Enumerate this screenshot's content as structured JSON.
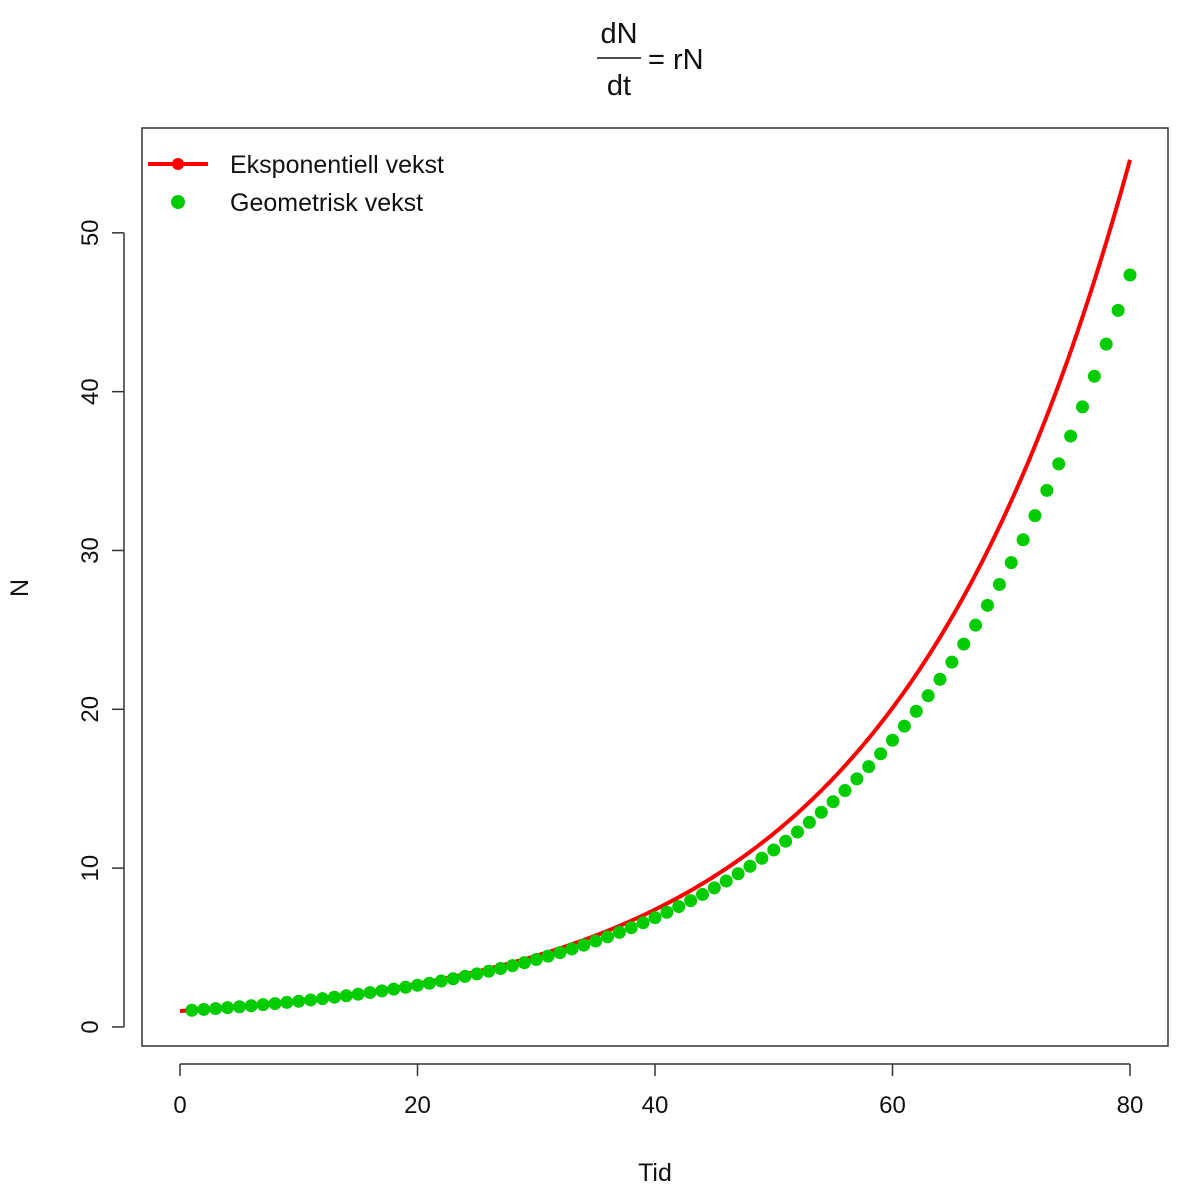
{
  "chart_data": {
    "type": "line",
    "title": {
      "numerator": "dN",
      "denominator": "dt",
      "rhs": "= rN"
    },
    "xlabel": "Tid",
    "ylabel": "N",
    "xlim": [
      -3.2,
      83.2
    ],
    "ylim": [
      -1.2,
      56.6
    ],
    "xticks": [
      0,
      20,
      40,
      60,
      80
    ],
    "xtick_labels": [
      "0",
      "20",
      "40",
      "60",
      "80"
    ],
    "yticks": [
      0,
      10,
      20,
      30,
      40,
      50
    ],
    "ytick_labels": [
      "0",
      "10",
      "20",
      "30",
      "40",
      "50"
    ],
    "grid": false,
    "legend_position": "top-left",
    "series": [
      {
        "name": "Eksponentiell vekst",
        "kind": "line",
        "color": "#ff0000",
        "model": "exponential",
        "N0": 1,
        "r": 0.05,
        "t_start": 0,
        "t_end": 80
      },
      {
        "name": "Geometrisk vekst",
        "kind": "points",
        "color": "#00cc00",
        "model": "geometric",
        "N0": 1,
        "lambda": 1.0494,
        "t_start": 1,
        "t_end": 80
      }
    ]
  }
}
